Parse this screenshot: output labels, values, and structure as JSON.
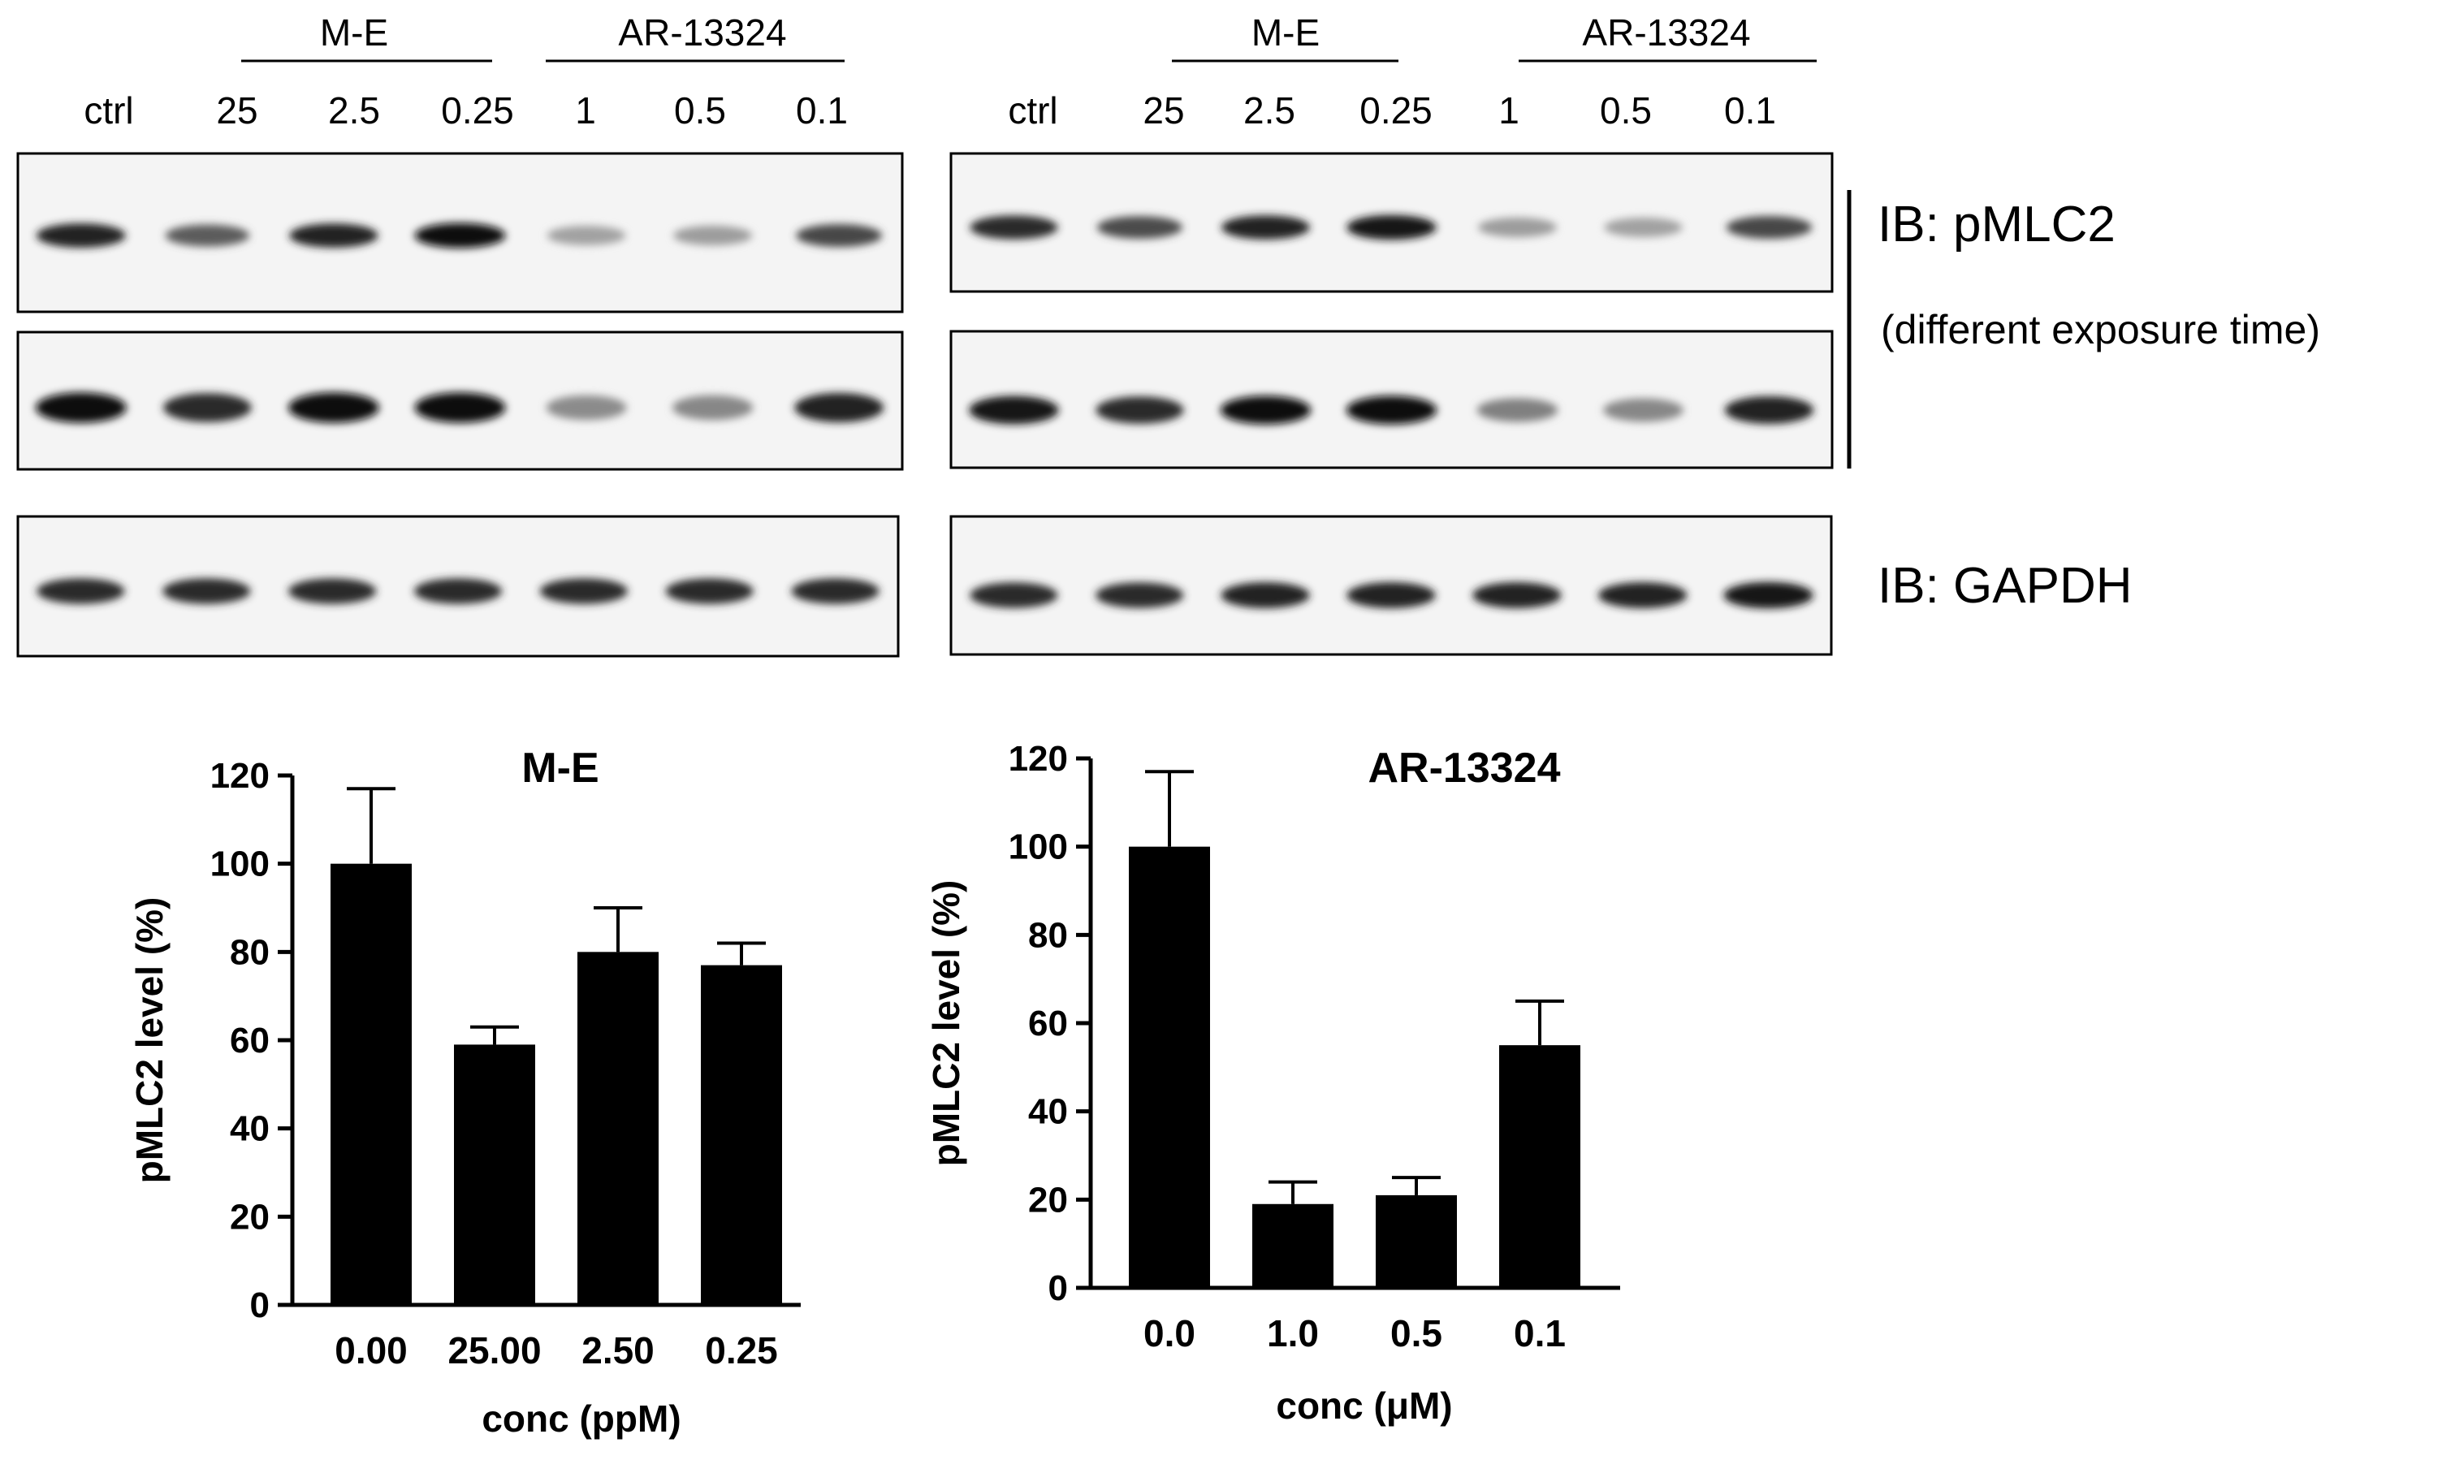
{
  "blot": {
    "groups": [
      {
        "label": "M-E"
      },
      {
        "label": "AR-13324"
      }
    ],
    "lane_labels": [
      "ctrl",
      "25",
      "2.5",
      "0.25",
      "1",
      "0.5",
      "0.1"
    ],
    "ib_pmlc2": "IB: pMLC2",
    "exposure_note": "(different exposure time)",
    "ib_gapdh": "IB: GAPDH",
    "panels": [
      {
        "rows": [
          [
            0.9,
            0.62,
            0.88,
            1.0,
            0.3,
            0.32,
            0.72
          ],
          [
            1.0,
            0.85,
            1.0,
            1.0,
            0.4,
            0.42,
            0.9
          ],
          [
            0.85,
            0.85,
            0.85,
            0.85,
            0.85,
            0.85,
            0.85
          ]
        ]
      },
      {
        "rows": [
          [
            0.85,
            0.7,
            0.88,
            0.95,
            0.32,
            0.3,
            0.72
          ],
          [
            0.95,
            0.85,
            1.0,
            1.0,
            0.45,
            0.42,
            0.9
          ],
          [
            0.85,
            0.85,
            0.9,
            0.9,
            0.9,
            0.9,
            0.95
          ]
        ]
      }
    ]
  },
  "chart_data": [
    {
      "type": "bar",
      "title": "M-E",
      "xlabel": "conc (ppM)",
      "ylabel": "pMLC2 level (%)",
      "categories": [
        "0.00",
        "25.00",
        "2.50",
        "0.25"
      ],
      "values": [
        100,
        59,
        80,
        77
      ],
      "errors": [
        17,
        4,
        10,
        5
      ],
      "ylim": [
        0,
        120
      ],
      "yticks": [
        0,
        20,
        40,
        60,
        80,
        100,
        120
      ],
      "bar_color": "#000000",
      "grid": false
    },
    {
      "type": "bar",
      "title": "AR-13324",
      "xlabel": "conc (μM)",
      "ylabel": "pMLC2 level (%)",
      "categories": [
        "0.0",
        "1.0",
        "0.5",
        "0.1"
      ],
      "values": [
        100,
        19,
        21,
        55
      ],
      "errors": [
        17,
        5,
        4,
        10
      ],
      "ylim": [
        0,
        120
      ],
      "yticks": [
        0,
        20,
        40,
        60,
        80,
        100,
        120
      ],
      "bar_color": "#000000",
      "grid": false
    }
  ]
}
